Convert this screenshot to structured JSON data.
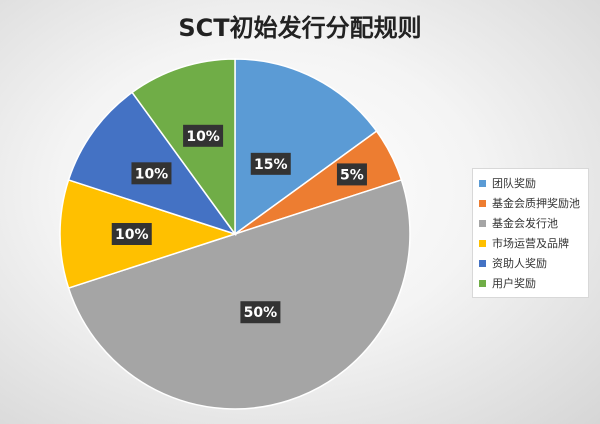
{
  "chart_data": {
    "type": "pie",
    "title": "SCT初始发行分配规则",
    "categories": [
      "团队奖励",
      "基金会质押奖励池",
      "基金会发行池",
      "市场运营及品牌",
      "资助人奖励",
      "用户奖励"
    ],
    "values": [
      15,
      5,
      50,
      10,
      10,
      10
    ],
    "value_labels": [
      "15%",
      "5%",
      "50%",
      "10%",
      "10%",
      "10%"
    ],
    "colors": [
      "#5b9bd5",
      "#ed7d31",
      "#a5a5a5",
      "#ffc000",
      "#4472c4",
      "#70ad47"
    ],
    "start_angle": "12 o'clock",
    "direction": "clockwise",
    "legend_position": "right"
  }
}
